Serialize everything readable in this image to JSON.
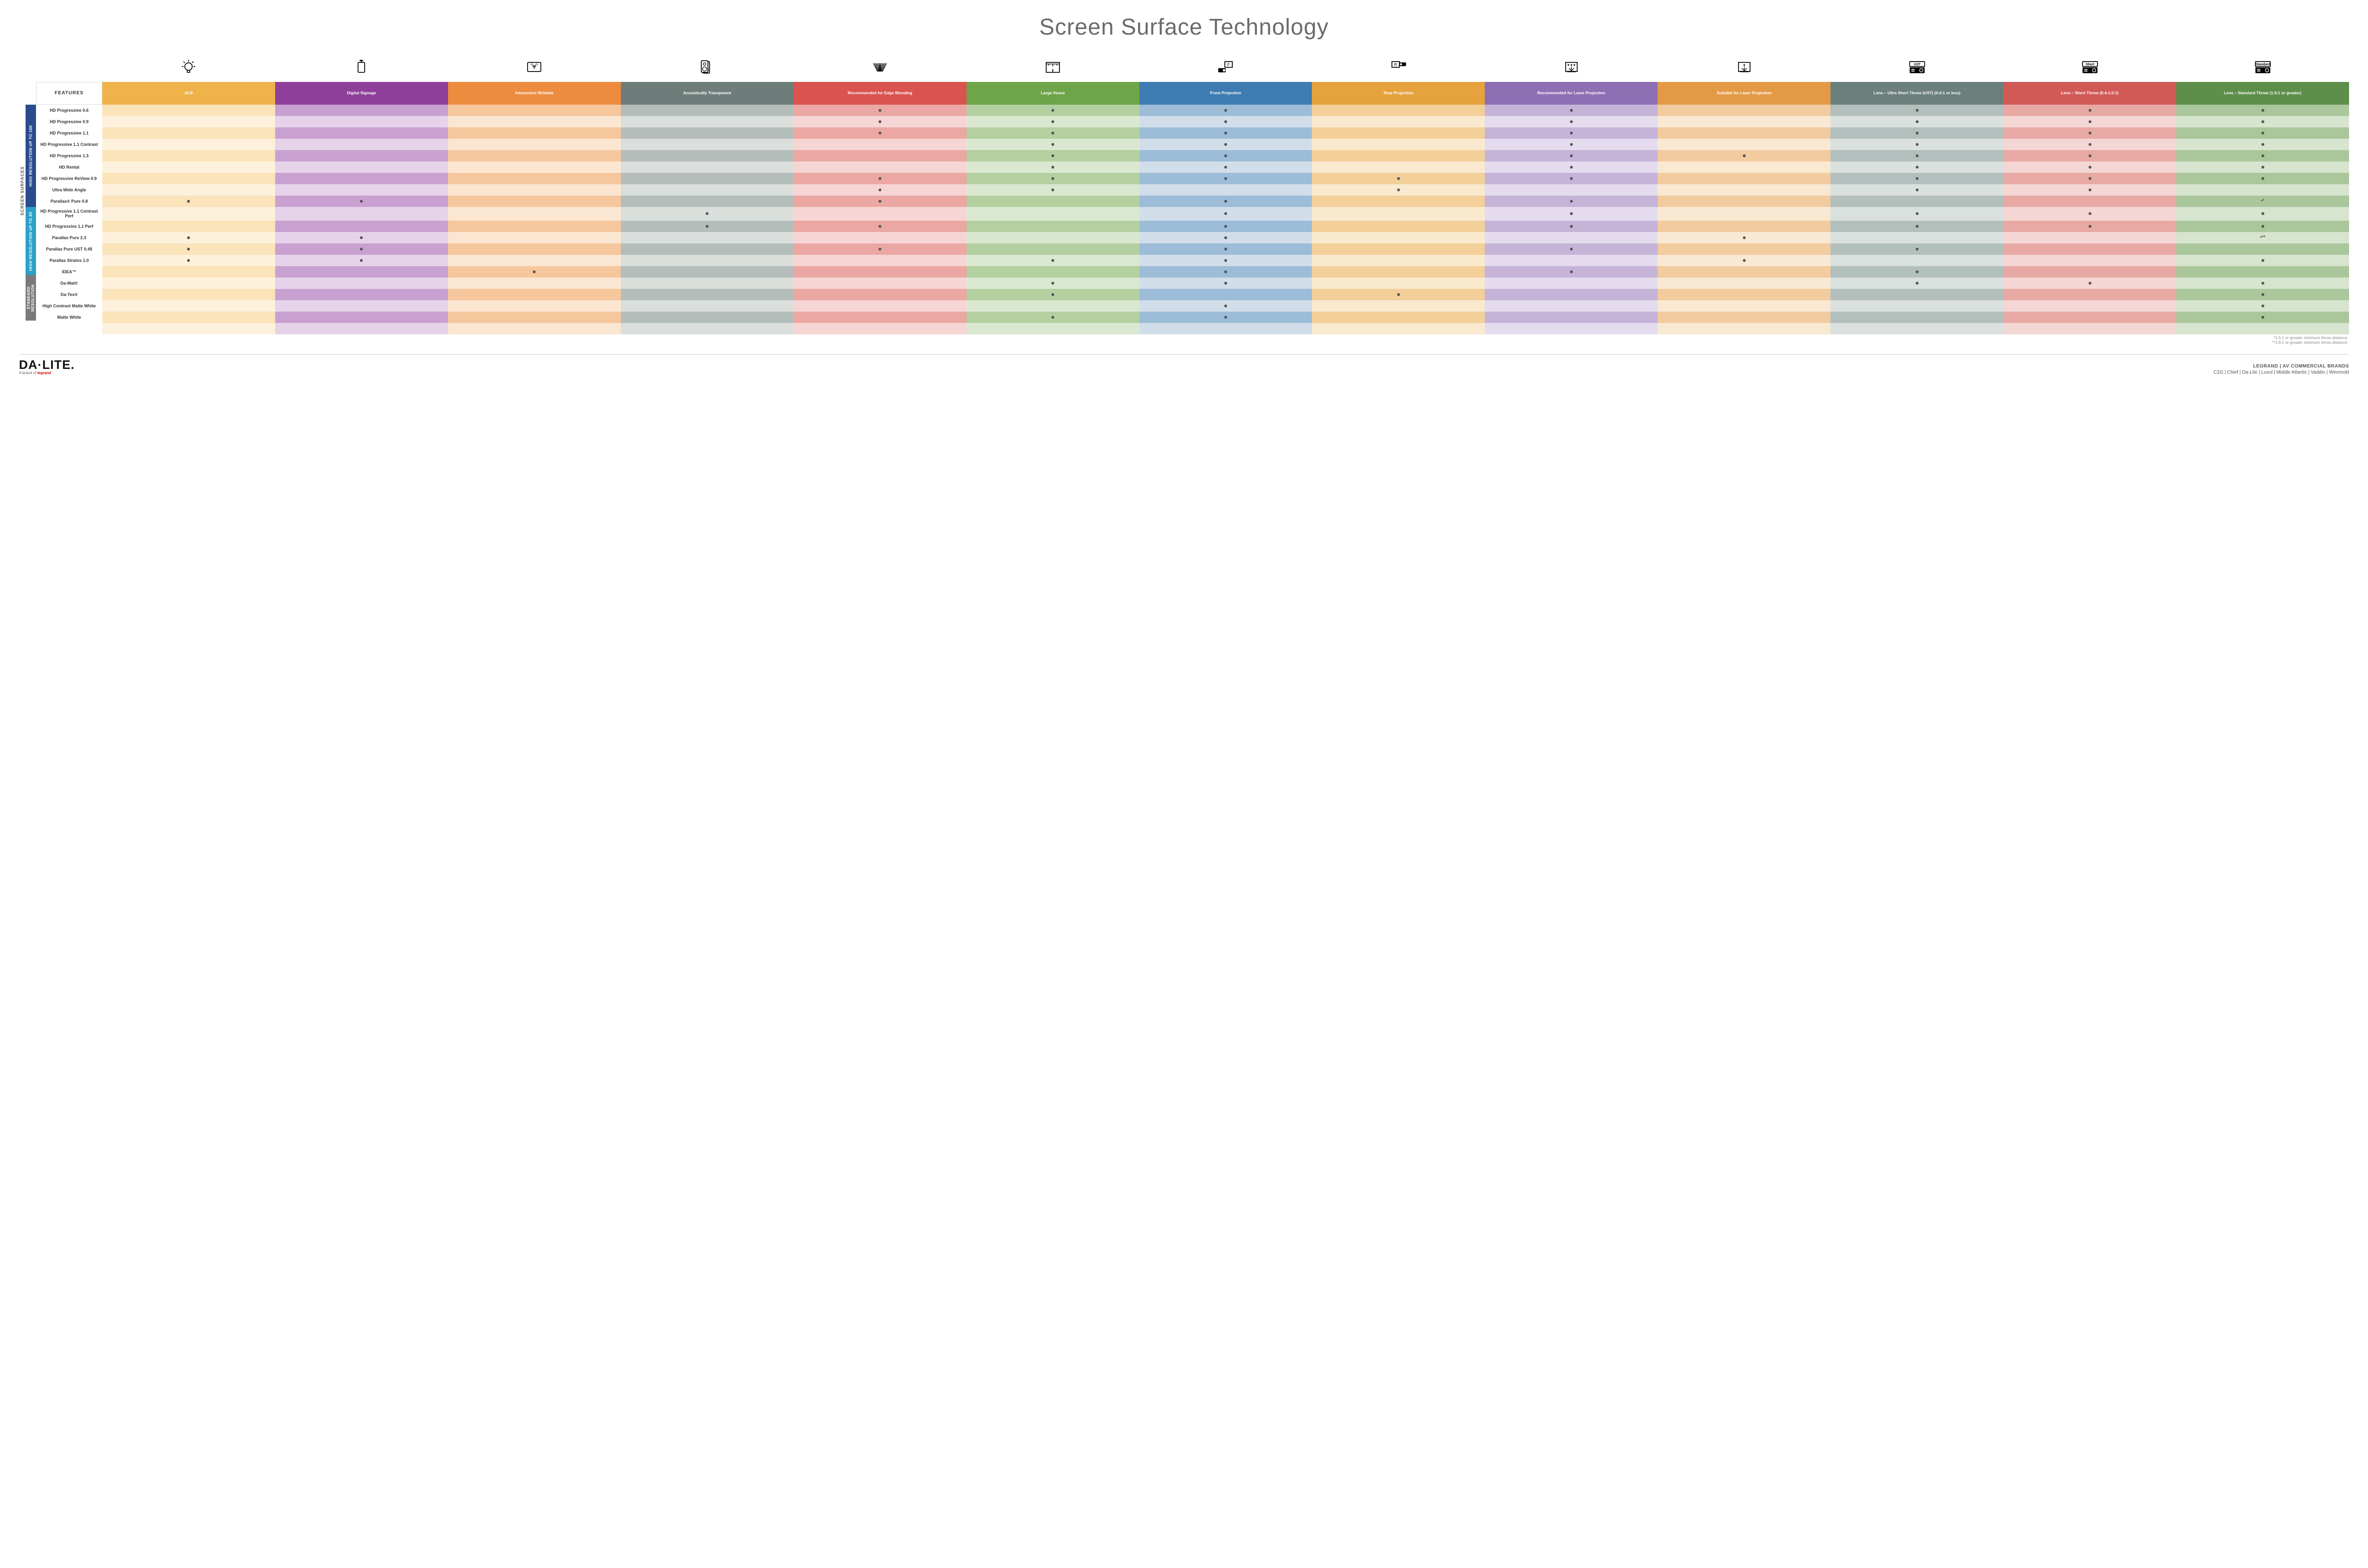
{
  "title": "Screen Surface Technology",
  "features_header": "FEATURES",
  "columns": [
    {
      "key": "alr",
      "label": "ALR",
      "color": "#f0b24a",
      "pale": "#fbe3ba",
      "palest": "#fdf1dc",
      "icon": "bulb"
    },
    {
      "key": "signage",
      "label": "Digital Signage",
      "color": "#8e3f9a",
      "pale": "#c9a1d1",
      "palest": "#e6d3ea",
      "icon": "signage"
    },
    {
      "key": "writable",
      "label": "Interactive/ Writable",
      "color": "#ed8b3f",
      "pale": "#f6c79d",
      "palest": "#fbe6d1",
      "icon": "touch"
    },
    {
      "key": "acoustic",
      "label": "Acoustically Transparent",
      "color": "#6f7d7a",
      "pale": "#b4bdb9",
      "palest": "#dadfdc",
      "icon": "speaker"
    },
    {
      "key": "edge",
      "label": "Recommended for Edge Blending",
      "color": "#d9534f",
      "pale": "#eba7a3",
      "palest": "#f6d6d4",
      "icon": "edge"
    },
    {
      "key": "venue",
      "label": "Large Venue",
      "color": "#6ea44a",
      "pale": "#b4d0a0",
      "palest": "#dbe8d1",
      "icon": "venue"
    },
    {
      "key": "front",
      "label": "Front Projection",
      "color": "#3e7cb1",
      "pale": "#9cbcd7",
      "palest": "#d1deea",
      "icon": "front"
    },
    {
      "key": "rear",
      "label": "Rear Projection",
      "color": "#e6a23c",
      "pale": "#f3d09a",
      "palest": "#f9e9cf",
      "icon": "rear"
    },
    {
      "key": "laser_rec",
      "label": "Recommended for Laser Projection",
      "color": "#8e6fb3",
      "pale": "#c5b4d7",
      "palest": "#e4dcee",
      "icon": "laser3"
    },
    {
      "key": "laser_ok",
      "label": "Suitable for Laser Projection",
      "color": "#e49a45",
      "pale": "#f2cb9f",
      "palest": "#f9e8d2",
      "icon": "laser1"
    },
    {
      "key": "lens_ust",
      "label": "Lens – Ultra Short Throw (UST) (0.4:1 or less)",
      "color": "#6b7f7c",
      "pale": "#b3bfbc",
      "palest": "#dae0de",
      "icon": "proj",
      "badge": "UST"
    },
    {
      "key": "lens_short",
      "label": "Lens – Short Throw (0.4-1.0:1)",
      "color": "#d15a56",
      "pale": "#e8a9a5",
      "palest": "#f4d7d5",
      "icon": "proj",
      "badge": "Short"
    },
    {
      "key": "lens_std",
      "label": "Lens – Standard Throw (1.0:1 or greater)",
      "color": "#5d8f4a",
      "pale": "#aac79b",
      "palest": "#d7e4ce",
      "icon": "proj",
      "badge": "Standard"
    }
  ],
  "groups": [
    {
      "label": "HIGH RESOLUTION UP TO 16K",
      "color": "#2a4b8d",
      "rows": [
        "r0",
        "r1",
        "r2",
        "r3",
        "r4",
        "r5",
        "r6",
        "r7",
        "r8"
      ]
    },
    {
      "label": "HIGH RESOLUTION UP TO 4K",
      "color": "#2aa0c8",
      "rows": [
        "r9",
        "r10",
        "r11",
        "r12",
        "r13",
        "r14"
      ]
    },
    {
      "label": "STANDARD RESOLUTION",
      "color": "#7a7a7a",
      "rows": [
        "r15",
        "r16",
        "r17",
        "r18"
      ]
    }
  ],
  "side_outer_label": "SCREEN SURFACES",
  "rows": {
    "r0": {
      "label": "HD Progressive 0.6",
      "cells": {
        "edge": "•",
        "venue": "•",
        "front": "•",
        "laser_rec": "•",
        "lens_ust": "•",
        "lens_short": "•",
        "lens_std": "•"
      }
    },
    "r1": {
      "label": "HD Progressive 0.9",
      "cells": {
        "edge": "•",
        "venue": "•",
        "front": "•",
        "laser_rec": "•",
        "lens_ust": "•",
        "lens_short": "•",
        "lens_std": "•"
      }
    },
    "r2": {
      "label": "HD Progressive 1.1",
      "cells": {
        "edge": "•",
        "venue": "•",
        "front": "•",
        "laser_rec": "•",
        "lens_ust": "•",
        "lens_short": "•",
        "lens_std": "•"
      }
    },
    "r3": {
      "label": "HD Progressive 1.1 Contrast",
      "cells": {
        "venue": "•",
        "front": "•",
        "laser_rec": "•",
        "lens_ust": "•",
        "lens_short": "•",
        "lens_std": "•"
      }
    },
    "r4": {
      "label": "HD Progressive 1.3",
      "cells": {
        "venue": "•",
        "front": "•",
        "laser_rec": "•",
        "laser_ok": "•",
        "lens_ust": "•",
        "lens_short": "•",
        "lens_std": "•"
      }
    },
    "r5": {
      "label": "HD Rental",
      "cells": {
        "venue": "•",
        "front": "•",
        "laser_rec": "•",
        "lens_ust": "•",
        "lens_short": "•",
        "lens_std": "•"
      }
    },
    "r6": {
      "label": "HD Progressive ReView 0.9",
      "cells": {
        "edge": "•",
        "venue": "•",
        "front": "•",
        "rear": "•",
        "laser_rec": "•",
        "lens_ust": "•",
        "lens_short": "•",
        "lens_std": "•"
      }
    },
    "r7": {
      "label": "Ultra Wide Angle",
      "cells": {
        "edge": "•",
        "venue": "•",
        "rear": "•",
        "lens_ust": "•",
        "lens_short": "•"
      }
    },
    "r8": {
      "label": "Parallax® Pure 0.8",
      "cells": {
        "alr": "•",
        "signage": "•",
        "edge": "•",
        "front": "•",
        "laser_rec": "•",
        "lens_std": "•*"
      }
    },
    "r9": {
      "label": "HD Progressive 1.1 Contrast Perf",
      "cells": {
        "acoustic": "•",
        "front": "•",
        "laser_rec": "•",
        "lens_ust": "•",
        "lens_short": "•",
        "lens_std": "•"
      }
    },
    "r10": {
      "label": "HD Progressive 1.1 Perf",
      "cells": {
        "acoustic": "•",
        "edge": "•",
        "front": "•",
        "laser_rec": "•",
        "lens_ust": "•",
        "lens_short": "•",
        "lens_std": "•"
      }
    },
    "r11": {
      "label": "Parallax Pure 2.3",
      "cells": {
        "alr": "•",
        "signage": "•",
        "front": "•",
        "laser_ok": "•",
        "lens_std": "•**"
      }
    },
    "r12": {
      "label": "Parallax Pure UST 0.45",
      "cells": {
        "alr": "•",
        "signage": "•",
        "edge": "•",
        "front": "•",
        "laser_rec": "•",
        "lens_ust": "•"
      }
    },
    "r13": {
      "label": "Parallax Stratos 1.0",
      "cells": {
        "alr": "•",
        "signage": "•",
        "venue": "•",
        "front": "•",
        "laser_ok": "•",
        "lens_std": "•"
      }
    },
    "r14": {
      "label": "IDEA™",
      "cells": {
        "writable": "•",
        "front": "•",
        "laser_rec": "•",
        "lens_ust": "•"
      }
    },
    "r15": {
      "label": "Da-Mat®",
      "cells": {
        "venue": "•",
        "front": "•",
        "lens_ust": "•",
        "lens_short": "•",
        "lens_std": "•"
      }
    },
    "r16": {
      "label": "Da-Tex®",
      "cells": {
        "venue": "•",
        "rear": "•",
        "lens_std": "•"
      }
    },
    "r17": {
      "label": "High Contrast Matte White",
      "cells": {
        "front": "•",
        "lens_std": "•"
      }
    },
    "r18": {
      "label": "Matte White",
      "cells": {
        "venue": "•",
        "front": "•",
        "lens_std": "•"
      }
    }
  },
  "footnotes": [
    "*1.5:1 or greater minimum throw distance",
    "**1.8:1 or greater minimum throw distance"
  ],
  "footer": {
    "brand": "DA·LITE.",
    "brand_sub_pre": "A brand of ",
    "brand_sub_logo": "legrand",
    "right_top": "LEGRAND | AV COMMERCIAL BRANDS",
    "right_list": "C2G  |  Chief  |  Da-Lite  |  Luxul  |  Middle Atlantic  |  Vaddio  |  Wiremold"
  }
}
